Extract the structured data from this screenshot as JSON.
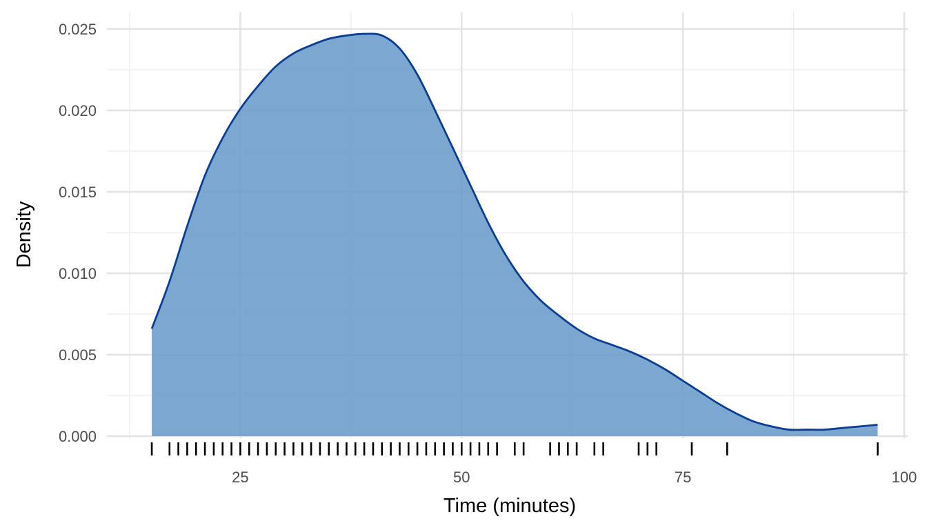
{
  "chart_data": {
    "type": "area",
    "xlabel": "Time (minutes)",
    "ylabel": "Density",
    "xlim": [
      12,
      100
    ],
    "ylim": [
      0,
      0.025
    ],
    "x_ticks": [
      {
        "value": 25,
        "label": "25"
      },
      {
        "value": 50,
        "label": "50"
      },
      {
        "value": 75,
        "label": "75"
      },
      {
        "value": 100,
        "label": "100"
      }
    ],
    "x_minor_ticks": [
      12.5,
      37.5,
      62.5,
      87.5
    ],
    "y_ticks": [
      {
        "value": 0,
        "label": "0.000"
      },
      {
        "value": 0.005,
        "label": "0.005"
      },
      {
        "value": 0.01,
        "label": "0.010"
      },
      {
        "value": 0.015,
        "label": "0.015"
      },
      {
        "value": 0.02,
        "label": "0.020"
      },
      {
        "value": 0.025,
        "label": "0.025"
      }
    ],
    "y_minor_ticks": [
      0.0025,
      0.0075,
      0.0125,
      0.0175,
      0.0225
    ],
    "grid": true,
    "legend": "none",
    "fill_color": "#6a9bcb",
    "line_color": "#0b3d91",
    "rug_color": "#000000",
    "density_curve": {
      "x": [
        15,
        17,
        19,
        21,
        23,
        25,
        27,
        29,
        31,
        33,
        35,
        37,
        39,
        41,
        43,
        45,
        47,
        49,
        51,
        53,
        55,
        57,
        59,
        61,
        63,
        65,
        67,
        69,
        71,
        73,
        75,
        77,
        79,
        81,
        83,
        85,
        87,
        89,
        91,
        93,
        95,
        97
      ],
      "y": [
        0.0066,
        0.0095,
        0.0129,
        0.016,
        0.0183,
        0.0201,
        0.0215,
        0.0227,
        0.0235,
        0.024,
        0.0244,
        0.0246,
        0.0247,
        0.0246,
        0.0238,
        0.0222,
        0.02,
        0.0177,
        0.0154,
        0.0131,
        0.0111,
        0.0095,
        0.0083,
        0.0074,
        0.0066,
        0.006,
        0.0056,
        0.0052,
        0.0047,
        0.0041,
        0.0034,
        0.0027,
        0.002,
        0.0014,
        0.0009,
        0.0006,
        0.0004,
        0.0004,
        0.0004,
        0.0005,
        0.0006,
        0.0007
      ]
    },
    "rug_x": [
      15,
      17,
      18,
      19,
      20,
      21,
      22,
      23,
      24,
      25,
      26,
      27,
      28,
      29,
      30,
      31,
      32,
      33,
      34,
      35,
      36,
      37,
      38,
      39,
      40,
      41,
      42,
      43,
      44,
      45,
      46,
      47,
      48,
      49,
      50,
      51,
      52,
      53,
      54,
      56,
      57,
      60,
      61,
      62,
      63,
      65,
      66,
      70,
      71,
      72,
      76,
      80,
      97
    ]
  }
}
